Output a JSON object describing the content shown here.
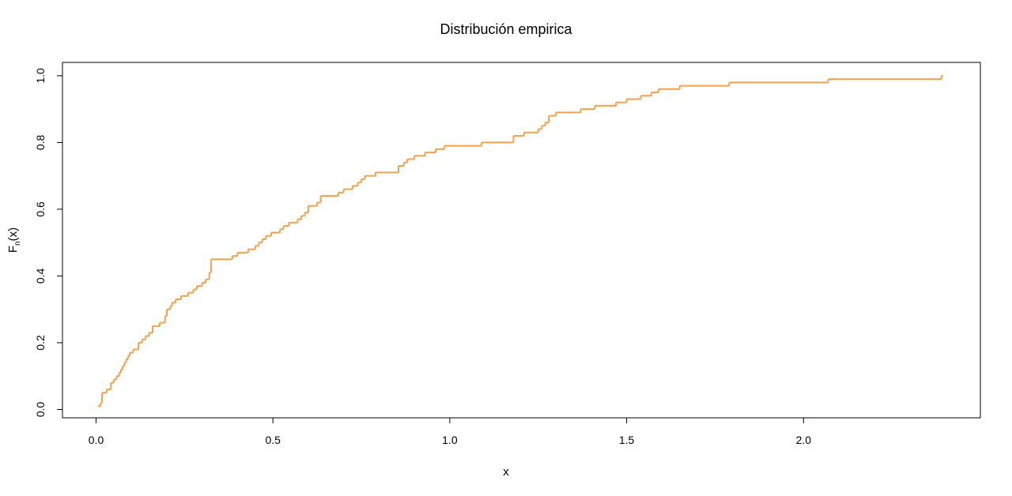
{
  "chart_data": {
    "type": "line",
    "step": true,
    "title": "Distribución empirica",
    "xlabel": "x",
    "ylabel": "F",
    "ylabel_sub": "n",
    "ylabel_suffix": "(x)",
    "xlim": [
      -0.095,
      2.5
    ],
    "ylim": [
      -0.025,
      1.04
    ],
    "xticks": [
      0.0,
      0.5,
      1.0,
      1.5,
      2.0
    ],
    "xtick_labels": [
      "0.0",
      "0.5",
      "1.0",
      "1.5",
      "2.0"
    ],
    "yticks": [
      0.0,
      0.2,
      0.4,
      0.6,
      0.8,
      1.0
    ],
    "ytick_labels": [
      "0.0",
      "0.2",
      "0.4",
      "0.6",
      "0.8",
      "1.0"
    ],
    "grid": false,
    "series": [
      {
        "color": "#F5A04A",
        "x": [
          0.005,
          0.013,
          0.017,
          0.03,
          0.042,
          0.05,
          0.058,
          0.065,
          0.07,
          0.075,
          0.08,
          0.085,
          0.09,
          0.095,
          0.105,
          0.12,
          0.13,
          0.14,
          0.15,
          0.16,
          0.18,
          0.195,
          0.2,
          0.21,
          0.215,
          0.225,
          0.24,
          0.26,
          0.275,
          0.285,
          0.3,
          0.31,
          0.32,
          0.325,
          0.385,
          0.4,
          0.43,
          0.45,
          0.46,
          0.47,
          0.48,
          0.495,
          0.52,
          0.53,
          0.545,
          0.57,
          0.58,
          0.59,
          0.6,
          0.625,
          0.635,
          0.685,
          0.7,
          0.725,
          0.74,
          0.75,
          0.76,
          0.79,
          0.855,
          0.87,
          0.88,
          0.9,
          0.93,
          0.96,
          0.985,
          1.09,
          1.18,
          1.21,
          1.25,
          1.26,
          1.27,
          1.28,
          1.3,
          1.37,
          1.41,
          1.47,
          1.5,
          1.54,
          1.57,
          1.59,
          1.65,
          1.79,
          2.07,
          2.39
        ],
        "y": [
          0.01,
          0.02,
          0.05,
          0.06,
          0.08,
          0.09,
          0.1,
          0.11,
          0.12,
          0.13,
          0.14,
          0.15,
          0.16,
          0.17,
          0.18,
          0.2,
          0.21,
          0.22,
          0.23,
          0.25,
          0.26,
          0.28,
          0.3,
          0.31,
          0.32,
          0.33,
          0.34,
          0.35,
          0.36,
          0.37,
          0.38,
          0.39,
          0.41,
          0.45,
          0.46,
          0.47,
          0.48,
          0.49,
          0.5,
          0.51,
          0.52,
          0.53,
          0.54,
          0.55,
          0.56,
          0.57,
          0.58,
          0.59,
          0.61,
          0.62,
          0.64,
          0.65,
          0.66,
          0.67,
          0.68,
          0.69,
          0.7,
          0.71,
          0.73,
          0.74,
          0.75,
          0.76,
          0.77,
          0.78,
          0.79,
          0.8,
          0.82,
          0.83,
          0.84,
          0.85,
          0.86,
          0.88,
          0.89,
          0.9,
          0.91,
          0.92,
          0.93,
          0.94,
          0.95,
          0.96,
          0.97,
          0.98,
          0.99,
          1.0
        ]
      }
    ]
  }
}
